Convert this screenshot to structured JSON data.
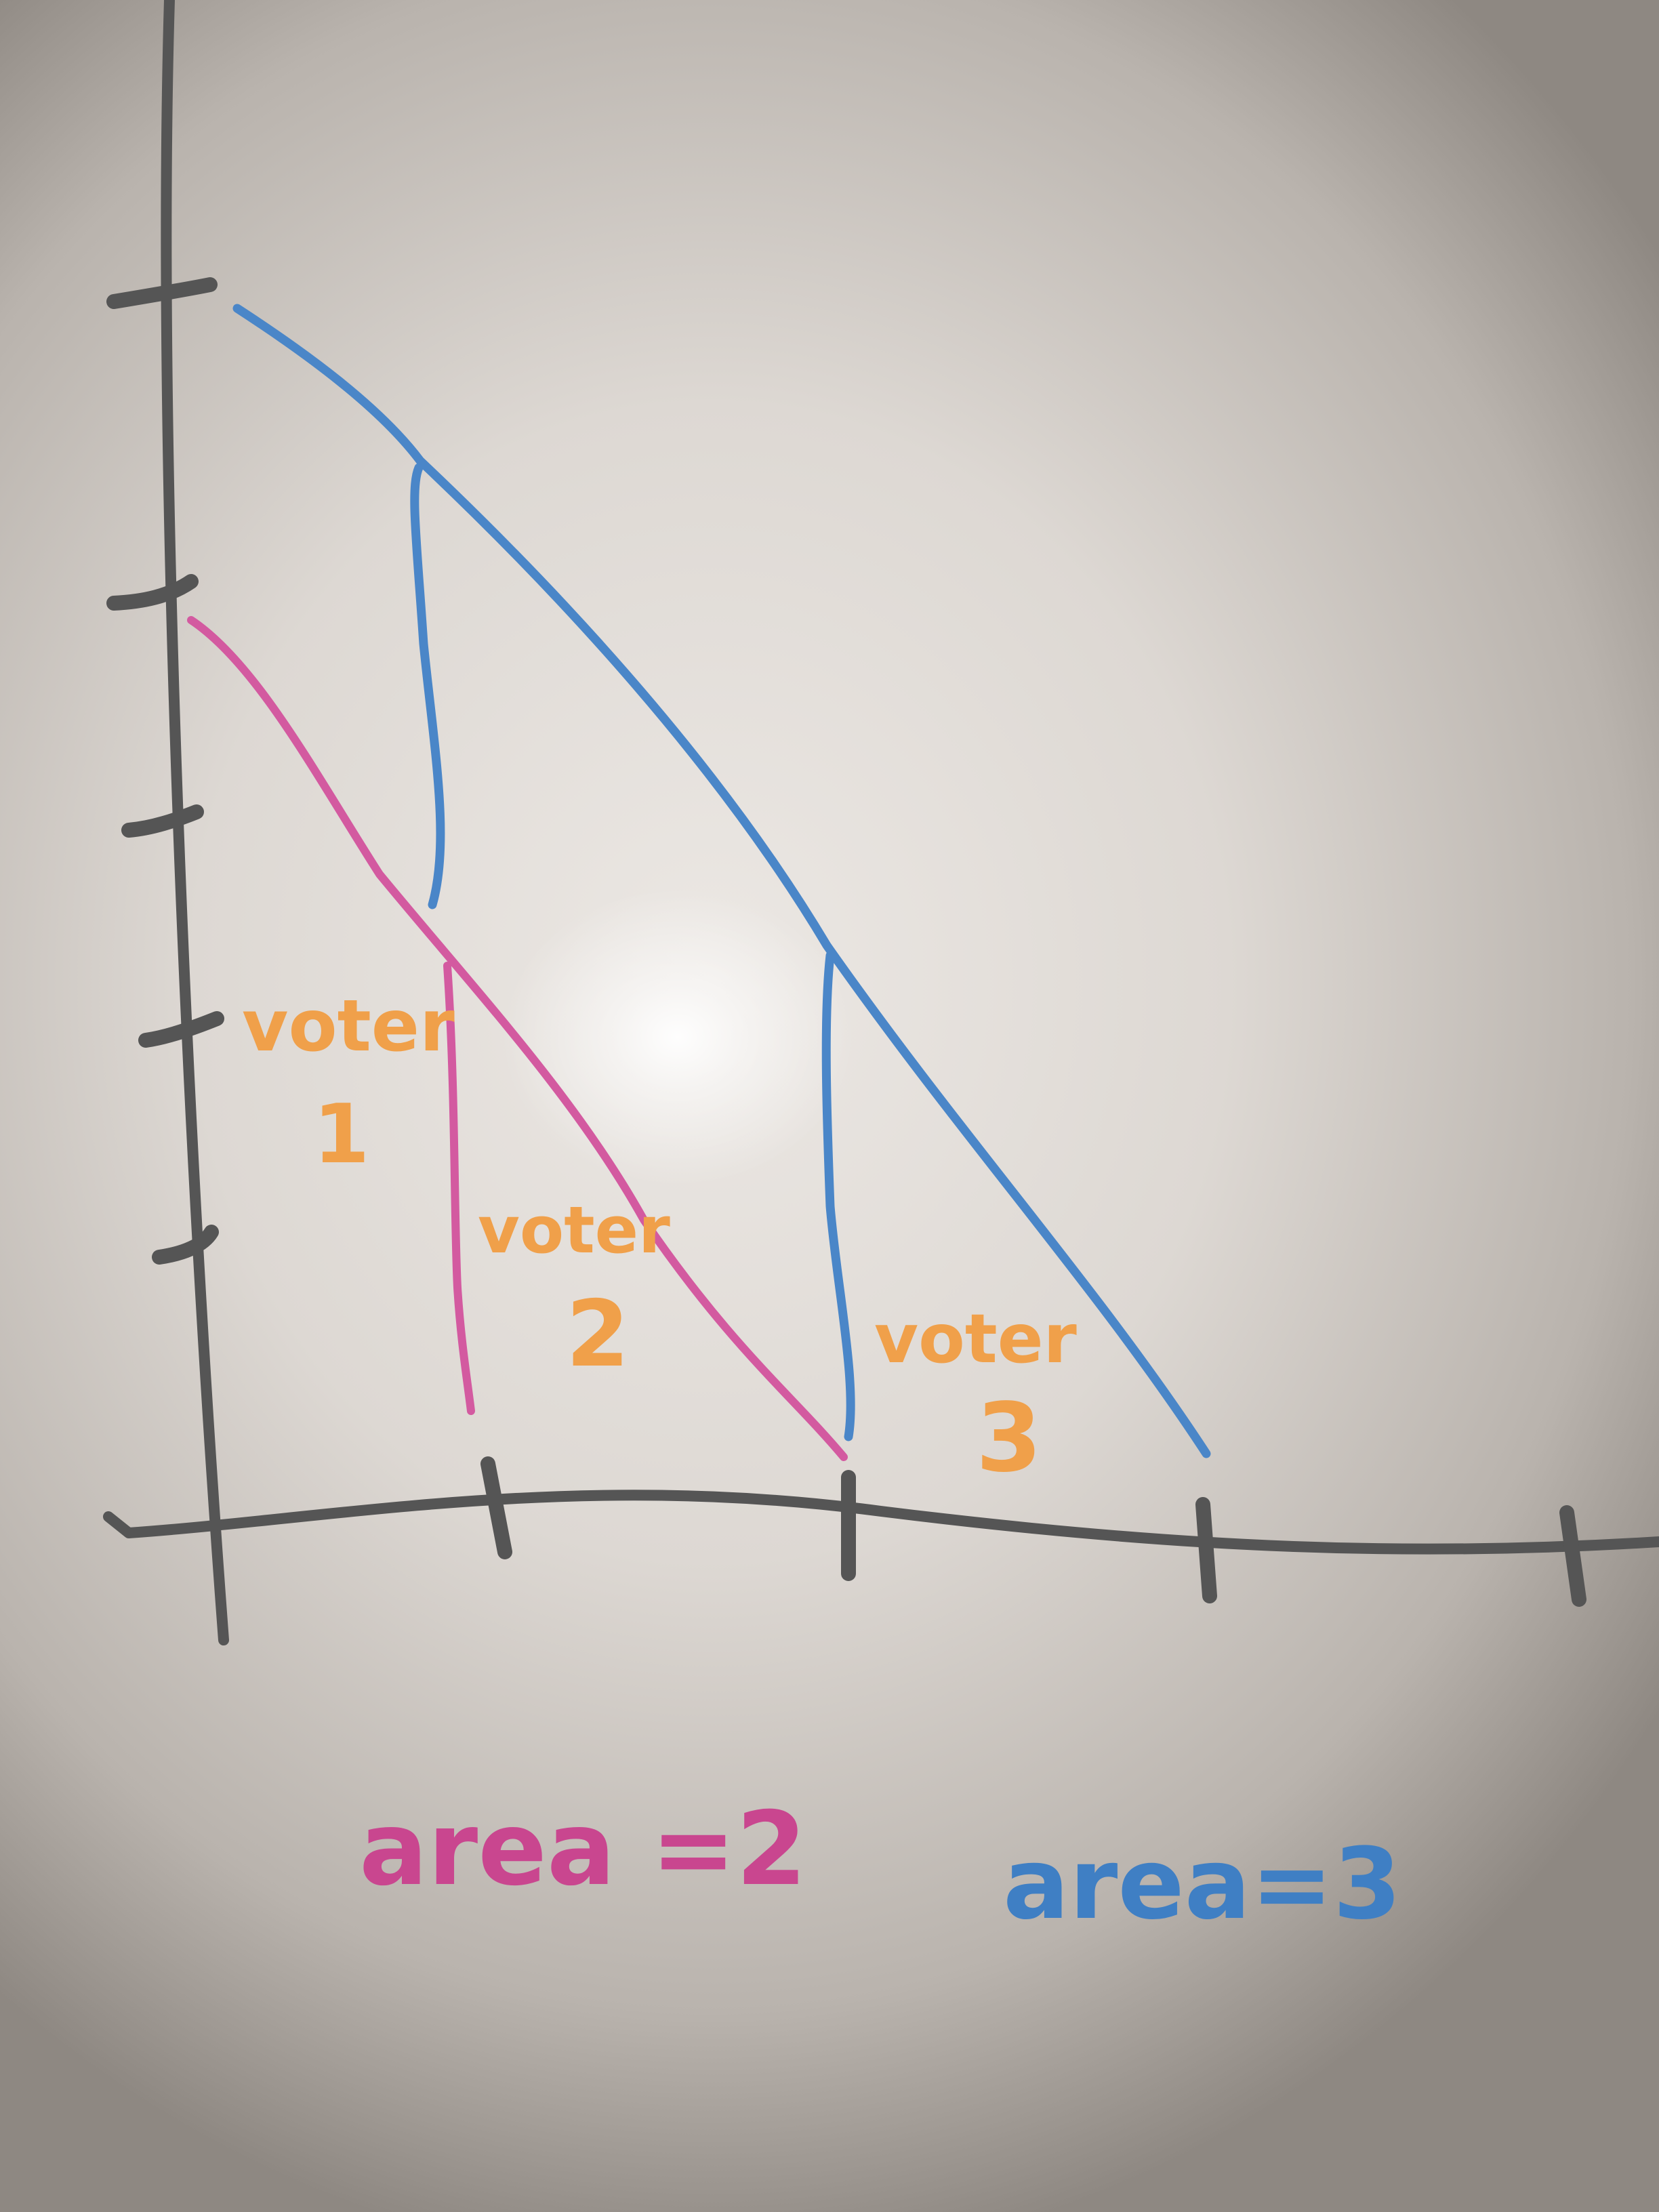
{
  "colors": {
    "axis": "#555555",
    "blue": "#4a86c8",
    "pink": "#d35aa0",
    "orange": "#f0a04a",
    "area_pink": "#c9468f",
    "area_blue": "#3f7fc4"
  },
  "labels": {
    "voter1_word": "voter",
    "voter1_num": "1",
    "voter2_word": "voter",
    "voter2_num": "2",
    "voter3_word": "voter",
    "voter3_num": "3",
    "area_pink": "area =2",
    "area_blue": "area=3"
  }
}
